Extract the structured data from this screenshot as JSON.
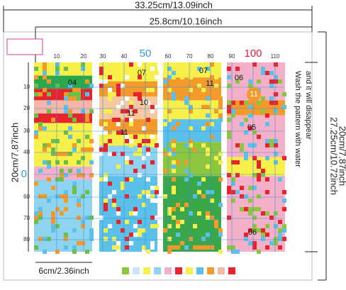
{
  "dimensions": {
    "outer_width": "33.25cm/13.09inch",
    "inner_width": "25.8cm/10.16inch",
    "outer_height": "27.25cm/10.72inch",
    "inner_height_right": "20cm/7.87inch",
    "inner_height_left": "20cm/7.87inch",
    "panel_width": "6cm/2.36inch"
  },
  "columns": [
    "10",
    "20",
    "30",
    "40",
    "50",
    "60",
    "70",
    "80",
    "90",
    "100",
    "110"
  ],
  "rows": [
    "10",
    "20",
    "30",
    "40",
    "0",
    "60",
    "70",
    "80"
  ],
  "note": [
    "Wash the pattern with water",
    "and it will disappear"
  ],
  "codes": [
    "04",
    "07",
    "10",
    "11",
    "11",
    "07",
    "11",
    "06",
    "11",
    "05",
    "06"
  ]
}
